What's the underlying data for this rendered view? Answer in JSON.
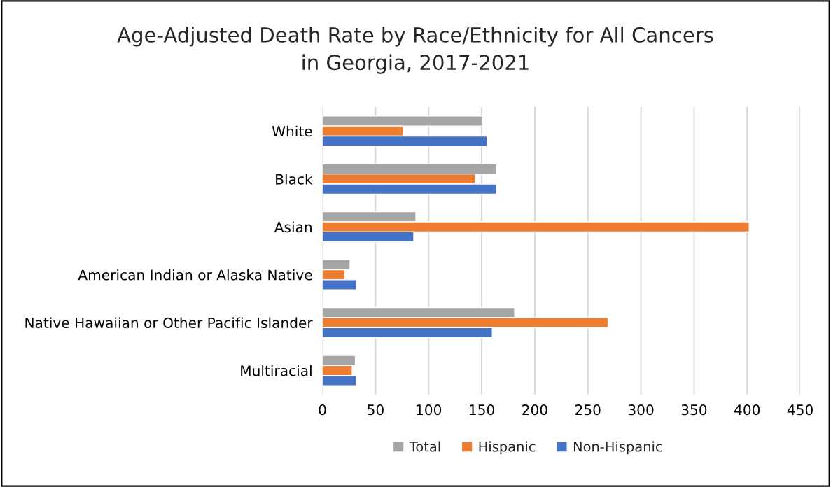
{
  "chart_data": {
    "type": "bar",
    "orientation": "horizontal",
    "title": "Age-Adjusted Death Rate by Race/Ethnicity for All Cancers\nin Georgia, 2017-2021",
    "categories": [
      "White",
      "Black",
      "Asian",
      "American Indian or Alaska Native",
      "Native Hawaiian or Other Pacific Islander",
      "Multiracial"
    ],
    "series": [
      {
        "name": "Total",
        "color": "#a5a5a5",
        "values": [
          151,
          164,
          88,
          26,
          181,
          31
        ]
      },
      {
        "name": "Hispanic",
        "color": "#ed7d31",
        "values": [
          76,
          144,
          402,
          21,
          269,
          28
        ]
      },
      {
        "name": "Non-Hispanic",
        "color": "#4472c4",
        "values": [
          155,
          164,
          86,
          32,
          160,
          32
        ]
      }
    ],
    "xlim": [
      0,
      450
    ],
    "xticks": [
      0,
      50,
      100,
      150,
      200,
      250,
      300,
      350,
      400,
      450
    ],
    "grid": "x",
    "legend": "bottom"
  }
}
